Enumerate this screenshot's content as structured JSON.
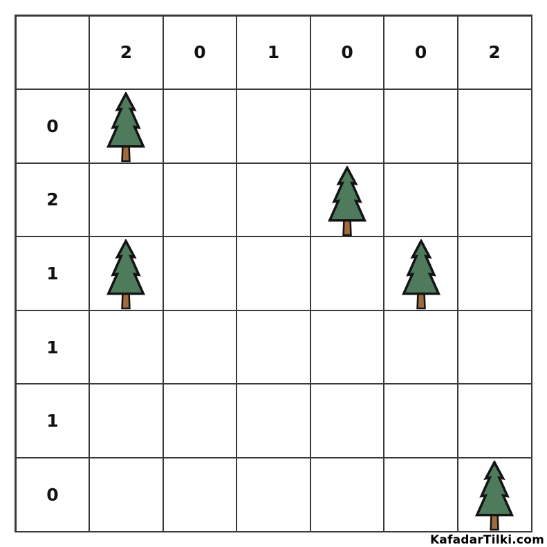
{
  "title": "tents-and-trees-puzzle",
  "watermark": "KafadarTilki.com",
  "grid": {
    "rows": 6,
    "cols": 6,
    "col_clues": [
      "2",
      "0",
      "1",
      "0",
      "0",
      "2"
    ],
    "row_clues": [
      "0",
      "2",
      "1",
      "1",
      "1",
      "0"
    ],
    "trees": [
      {
        "row": 0,
        "col": 0
      },
      {
        "row": 1,
        "col": 3
      },
      {
        "row": 2,
        "col": 0
      },
      {
        "row": 2,
        "col": 4
      },
      {
        "row": 5,
        "col": 5
      }
    ]
  },
  "icons": {
    "tree": "fir-tree-icon"
  },
  "colors": {
    "tree_green": "#4e7b5c",
    "trunk_brown": "#a06c3e",
    "outline": "#141414",
    "grid_line": "#3a3a3a",
    "clue_text": "#111111",
    "background": "#ffffff"
  }
}
